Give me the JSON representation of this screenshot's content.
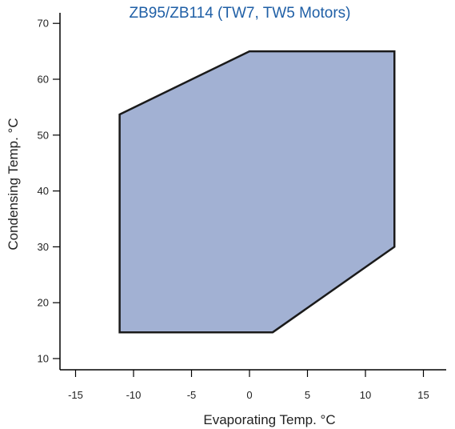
{
  "chart_data": {
    "type": "area",
    "title": "ZB95/ZB114 (TW7, TW5 Motors)",
    "xlabel": "Evaporating Temp. °C",
    "ylabel": "Condensing Temp. °C",
    "xlim": [
      -16.5,
      17.5
    ],
    "ylim": [
      8,
      72
    ],
    "xticks": [
      -15,
      -10,
      -5,
      0,
      5,
      10,
      15
    ],
    "yticks": [
      10,
      20,
      30,
      40,
      50,
      60,
      70
    ],
    "grid": false,
    "series": [
      {
        "x": [
          -11.2,
          0,
          12.5,
          12.5,
          2,
          -11.2
        ],
        "y": [
          53.7,
          65,
          65,
          30,
          14.7,
          14.7
        ]
      }
    ],
    "colors": {
      "fill": "#a2b1d3",
      "stroke": "#1a1a1a",
      "title": "#1f5fa6",
      "axis": "#000000"
    }
  }
}
